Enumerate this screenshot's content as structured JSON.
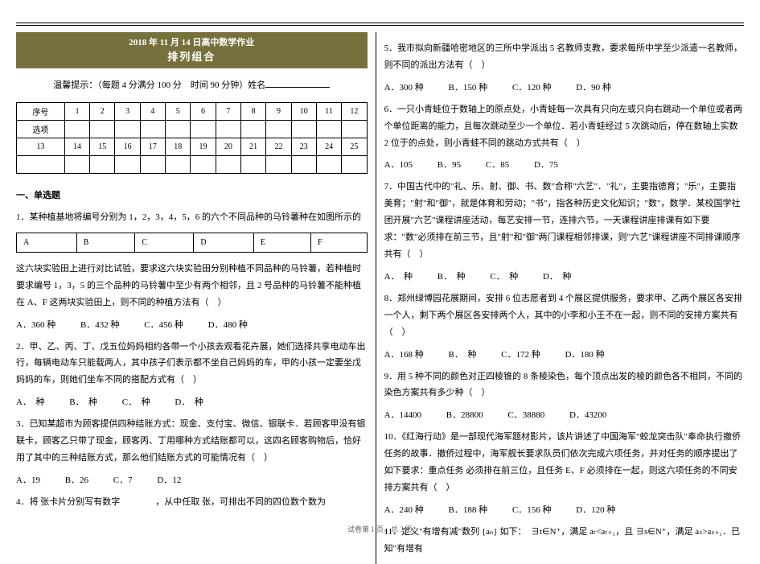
{
  "header": {
    "line1": "2018 年 11 月 14 日高中数学作业",
    "line2": "排列组合"
  },
  "hint": {
    "prefix": "温馨提示：（每题 4 分满分 100 分　时间 90 分钟）姓名"
  },
  "answer_grid": {
    "row1_label": "序号",
    "row1": [
      "1",
      "2",
      "3",
      "4",
      "5",
      "6",
      "7",
      "8",
      "9",
      "10",
      "11",
      "12"
    ],
    "row2_label": "选项",
    "row3": [
      "13",
      "14",
      "15",
      "16",
      "17",
      "18",
      "19",
      "20",
      "21",
      "22",
      "23",
      "24",
      "25"
    ]
  },
  "section_title": "一、单选题",
  "q1": {
    "text": "1．某种植基地将编号分别为 1，2，3，4，5，6 的六个不同品种的马铃薯种在如图所示的",
    "grid": [
      "A",
      "B",
      "C",
      "D",
      "E",
      "F"
    ],
    "text2": "这六块实验田上进行对比试验，要求这六块实验田分别种植不同品种的马铃薯，若种植时要求编号 1，3，5 的三个品种的马铃薯中至少有两个相邻，且 2 号品种的马铃薯不能种植在 A、F 这两块实验田上，则不同的种植方法有（　）",
    "opts": [
      "A．360 种",
      "B．432 种",
      "C．456 种",
      "D．480 种"
    ]
  },
  "q2": {
    "text": "2．甲、乙、丙、丁、戊五位妈妈相约各带一个小孩去观看花卉展，她们选择共享电动车出行，每辆电动车只能载两人，其中孩子们表示都不坐自己妈妈的车，甲的小孩一定要坐戊妈妈的车，则她们坐车不同的搭配方式有（　）",
    "opts": [
      "A．　种",
      "B．　种",
      "C．　种",
      "D．　种"
    ]
  },
  "q3": {
    "text": "3．已知某超市为顾客提供四种结账方式：现金、支付宝、微信、银联卡．若顾客甲没有银联卡，顾客乙只带了现金，顾客丙、丁用哪种方式结账都可以，这四名顾客购物后，恰好用了其中的三种结账方式，那么他们结账方式的可能情况有（　）",
    "opts": [
      "A．19",
      "B．26",
      "C．7",
      "D．12"
    ]
  },
  "q4": {
    "text": "4．将 张卡片分别写有数字　　　　，从中任取 张，可排出不同的四位数个数为"
  },
  "q5": {
    "text": "5．我市拟向新疆哈密地区的三所中学派出 5 名教师支教，要求每所中学至少派遣一名教师，则不同的派出方法有（　）",
    "opts": [
      "A．300 种",
      "B．150 种",
      "C．120 种",
      "D．90 种"
    ]
  },
  "q6": {
    "text": "6．一只小青蛙位于数轴上的原点处，小青蛙每一次具有只向左或只向右跳动一个单位或者两个单位距离的能力，且每次跳动至少一个单位．若小青蛙经过 5 次跳动后，停在数轴上实数 2 位于的点处，则小青蛙不同的跳动方式共有（　）",
    "opts": [
      "A．105",
      "B．95",
      "C．85",
      "D．75"
    ]
  },
  "q7": {
    "text": "7．中国古代中的\"礼、乐、射、御、书、数\"合称\"六艺\"．\"礼\"，主要指德育；\"乐\"，主要指美育；\"射\"和\"御\"，就是体育和劳动；\"书\"，指各种历史文化知识；\"数\"，数学．某校国学社团开展\"六艺\"课程讲座活动，每艺安排一节，连排六节，一天课程讲座排课有如下要求：\"数\"必须排在前三节，且\"射\"和\"御\"两门课程相邻排课，则\"六艺\"课程讲座不同排课顺序共有（　）",
    "opts": [
      "A．　种",
      "B．　种",
      "C．　种",
      "D．　种"
    ]
  },
  "q8": {
    "text": "8．郑州绿博园花展期间，安排 6 位志愿者到 4 个展区提供服务，要求甲、乙两个展区各安排一个人，剩下两个展区各安排两个人，其中的小李和小王不在一起，则不同的安排方案共有（　）",
    "opts": [
      "A．168 种",
      "B．　种",
      "C．172 种",
      "D．180 种"
    ]
  },
  "q9": {
    "text": "9．用 5 种不同的颜色对正四棱锥的 8 条棱染色，每个顶点出发的棱的颜色各不相同，不同的染色方案共有多少种（　）",
    "opts": [
      "A．14400",
      "B．28800",
      "C．38880",
      "D．43200"
    ]
  },
  "q10": {
    "text": "10．《红海行动》是一部现代海军题材影片，该片讲述了中国海军\"蛟龙突击队\"奉命执行撤侨任务的故事．撤侨过程中，海军舰长要求队员们依次完成六项任务，并对任务的顺序提出了如下要求：重点任务 必须排在前三位，且任务 E、F 必须排在一起，则这六项任务的不同安排方案共有（　）",
    "opts": [
      "A．240 种",
      "B．188 种",
      "C．156 种",
      "D．120 种"
    ]
  },
  "q11": {
    "text": "11．定义\"有增有减\"数列 {aₙ} 如下：　∃t∈N⁺，满足 aₜ<aₜ₊₁，且 ∃s∈N⁺，满足 aₛ>aₛ₊₁．已知\"有增有"
  },
  "footer": "试卷第 1 页，总 3 页"
}
